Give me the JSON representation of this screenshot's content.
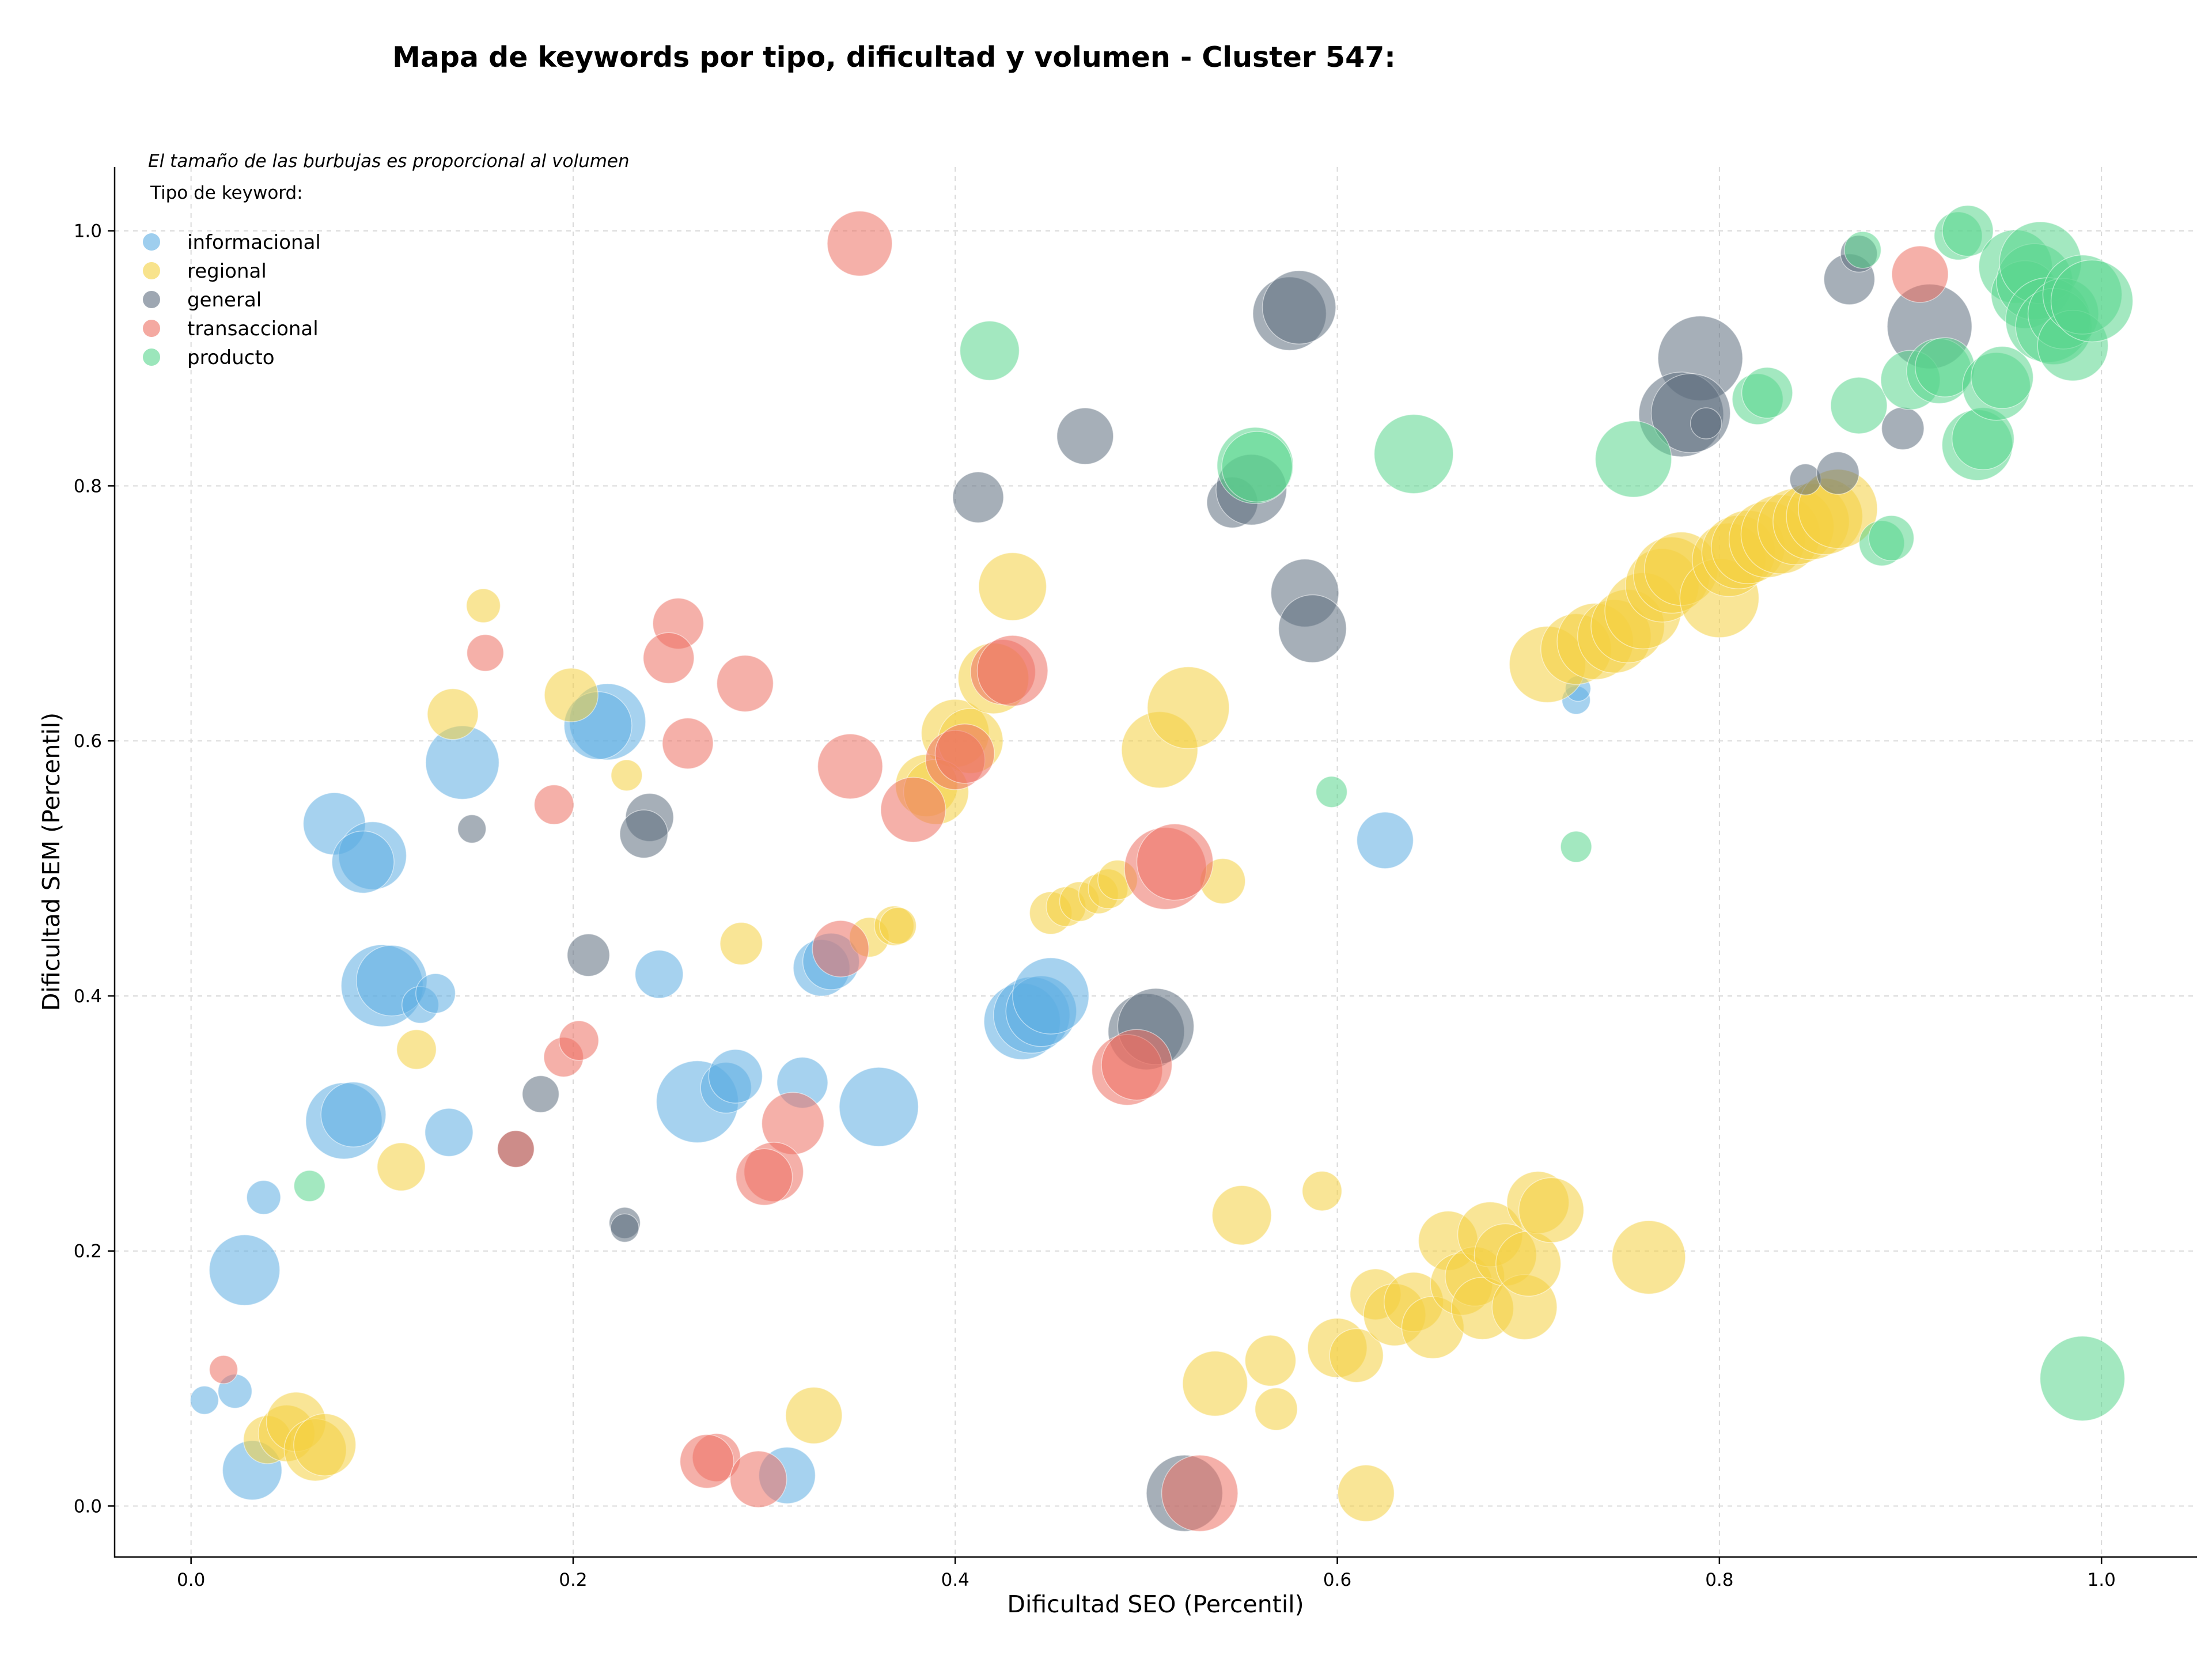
{
  "chart_data": {
    "type": "scatter",
    "title": "Mapa de keywords por tipo, dificultad y volumen - Cluster 547:",
    "xlabel": "Dificultad SEO (Percentil)",
    "ylabel": "Dificultad SEM (Percentil)",
    "xlim": [
      -0.04,
      1.05
    ],
    "ylim": [
      -0.04,
      1.05
    ],
    "x_ticks": [
      "0.0",
      "0.2",
      "0.4",
      "0.6",
      "0.8",
      "1.0"
    ],
    "y_ticks": [
      "0.0",
      "0.2",
      "0.4",
      "0.6",
      "0.8",
      "1.0"
    ],
    "grid": true,
    "note": "El tamaño de las burbujas es proporcional al volumen",
    "legend_title": "Tipo de keyword:",
    "legend_position": "top-left",
    "series": [
      {
        "name": "informacional",
        "color": "#5DADE2",
        "points": [
          [
            0.075,
            0.535,
            22
          ],
          [
            0.095,
            0.51,
            24
          ],
          [
            0.09,
            0.505,
            22
          ],
          [
            0.142,
            0.583,
            26
          ],
          [
            0.218,
            0.615,
            27
          ],
          [
            0.213,
            0.612,
            24
          ],
          [
            0.1,
            0.408,
            29
          ],
          [
            0.105,
            0.412,
            25
          ],
          [
            0.12,
            0.393,
            13
          ],
          [
            0.128,
            0.402,
            14
          ],
          [
            0.245,
            0.417,
            17
          ],
          [
            0.135,
            0.293,
            17
          ],
          [
            0.08,
            0.302,
            27
          ],
          [
            0.085,
            0.307,
            23
          ],
          [
            0.265,
            0.317,
            29
          ],
          [
            0.28,
            0.328,
            18
          ],
          [
            0.285,
            0.337,
            19
          ],
          [
            0.32,
            0.332,
            18
          ],
          [
            0.36,
            0.313,
            28
          ],
          [
            0.33,
            0.422,
            20
          ],
          [
            0.335,
            0.427,
            20
          ],
          [
            0.038,
            0.242,
            12
          ],
          [
            0.028,
            0.185,
            25
          ],
          [
            0.032,
            0.028,
            21
          ],
          [
            0.023,
            0.09,
            12
          ],
          [
            0.007,
            0.083,
            10
          ],
          [
            0.312,
            0.024,
            20
          ],
          [
            0.435,
            0.38,
            27
          ],
          [
            0.44,
            0.385,
            27
          ],
          [
            0.445,
            0.388,
            25
          ],
          [
            0.45,
            0.4,
            27
          ],
          [
            0.625,
            0.522,
            20
          ],
          [
            0.725,
            0.632,
            10
          ],
          [
            0.726,
            0.641,
            9
          ]
        ]
      },
      {
        "name": "regional",
        "color": "#F4D03F",
        "points": [
          [
            0.153,
            0.706,
            12
          ],
          [
            0.137,
            0.621,
            18
          ],
          [
            0.199,
            0.636,
            19
          ],
          [
            0.228,
            0.573,
            11
          ],
          [
            0.118,
            0.358,
            14
          ],
          [
            0.11,
            0.266,
            17
          ],
          [
            0.288,
            0.441,
            15
          ],
          [
            0.355,
            0.446,
            14
          ],
          [
            0.368,
            0.455,
            14
          ],
          [
            0.37,
            0.455,
            13
          ],
          [
            0.04,
            0.052,
            17
          ],
          [
            0.05,
            0.057,
            20
          ],
          [
            0.055,
            0.066,
            21
          ],
          [
            0.065,
            0.044,
            22
          ],
          [
            0.07,
            0.048,
            22
          ],
          [
            0.326,
            0.071,
            20
          ],
          [
            0.43,
            0.721,
            24
          ],
          [
            0.4,
            0.606,
            24
          ],
          [
            0.408,
            0.6,
            23
          ],
          [
            0.385,
            0.565,
            22
          ],
          [
            0.39,
            0.56,
            23
          ],
          [
            0.42,
            0.649,
            25
          ],
          [
            0.507,
            0.593,
            27
          ],
          [
            0.522,
            0.626,
            29
          ],
          [
            0.45,
            0.465,
            15
          ],
          [
            0.458,
            0.47,
            14
          ],
          [
            0.465,
            0.474,
            14
          ],
          [
            0.475,
            0.48,
            14
          ],
          [
            0.48,
            0.484,
            14
          ],
          [
            0.485,
            0.491,
            14
          ],
          [
            0.54,
            0.49,
            16
          ],
          [
            0.55,
            0.228,
            21
          ],
          [
            0.592,
            0.247,
            14
          ],
          [
            0.536,
            0.096,
            23
          ],
          [
            0.565,
            0.114,
            18
          ],
          [
            0.568,
            0.076,
            15
          ],
          [
            0.615,
            0.01,
            20
          ],
          [
            0.6,
            0.124,
            21
          ],
          [
            0.61,
            0.118,
            19
          ],
          [
            0.62,
            0.166,
            18
          ],
          [
            0.63,
            0.15,
            22
          ],
          [
            0.64,
            0.16,
            21
          ],
          [
            0.65,
            0.14,
            22
          ],
          [
            0.658,
            0.208,
            21
          ],
          [
            0.665,
            0.174,
            22
          ],
          [
            0.672,
            0.18,
            21
          ],
          [
            0.676,
            0.155,
            22
          ],
          [
            0.68,
            0.213,
            23
          ],
          [
            0.688,
            0.197,
            22
          ],
          [
            0.698,
            0.156,
            23
          ],
          [
            0.7,
            0.19,
            23
          ],
          [
            0.705,
            0.238,
            22
          ],
          [
            0.712,
            0.232,
            23
          ],
          [
            0.763,
            0.195,
            26
          ],
          [
            0.71,
            0.66,
            27
          ],
          [
            0.725,
            0.672,
            25
          ],
          [
            0.735,
            0.678,
            27
          ],
          [
            0.745,
            0.682,
            26
          ],
          [
            0.752,
            0.69,
            26
          ],
          [
            0.76,
            0.702,
            27
          ],
          [
            0.77,
            0.722,
            26
          ],
          [
            0.775,
            0.73,
            27
          ],
          [
            0.78,
            0.735,
            26
          ],
          [
            0.8,
            0.712,
            28
          ],
          [
            0.805,
            0.742,
            26
          ],
          [
            0.81,
            0.748,
            26
          ],
          [
            0.815,
            0.752,
            26
          ],
          [
            0.825,
            0.758,
            27
          ],
          [
            0.832,
            0.762,
            28
          ],
          [
            0.84,
            0.768,
            27
          ],
          [
            0.848,
            0.772,
            27
          ],
          [
            0.855,
            0.776,
            27
          ],
          [
            0.862,
            0.782,
            28
          ]
        ]
      },
      {
        "name": "general",
        "color": "#5D6D7E",
        "points": [
          [
            0.147,
            0.531,
            10
          ],
          [
            0.24,
            0.54,
            17
          ],
          [
            0.237,
            0.527,
            17
          ],
          [
            0.208,
            0.432,
            15
          ],
          [
            0.183,
            0.323,
            13
          ],
          [
            0.227,
            0.222,
            11
          ],
          [
            0.227,
            0.218,
            10
          ],
          [
            0.17,
            0.28,
            13
          ],
          [
            0.412,
            0.791,
            18
          ],
          [
            0.468,
            0.839,
            20
          ],
          [
            0.545,
            0.787,
            18
          ],
          [
            0.555,
            0.797,
            25
          ],
          [
            0.575,
            0.935,
            26
          ],
          [
            0.58,
            0.94,
            26
          ],
          [
            0.583,
            0.716,
            24
          ],
          [
            0.587,
            0.688,
            24
          ],
          [
            0.5,
            0.372,
            27
          ],
          [
            0.505,
            0.376,
            27
          ],
          [
            0.52,
            0.01,
            27
          ],
          [
            0.79,
            0.9,
            30
          ],
          [
            0.78,
            0.856,
            30
          ],
          [
            0.785,
            0.857,
            28
          ],
          [
            0.793,
            0.849,
            11
          ],
          [
            0.845,
            0.805,
            11
          ],
          [
            0.862,
            0.81,
            15
          ],
          [
            0.868,
            0.962,
            18
          ],
          [
            0.873,
            0.982,
            13
          ],
          [
            0.896,
            0.845,
            15
          ],
          [
            0.91,
            0.925,
            30
          ]
        ]
      },
      {
        "name": "transaccional",
        "color": "#EC7063",
        "points": [
          [
            0.35,
            0.99,
            23
          ],
          [
            0.154,
            0.669,
            13
          ],
          [
            0.255,
            0.692,
            18
          ],
          [
            0.25,
            0.665,
            18
          ],
          [
            0.29,
            0.645,
            20
          ],
          [
            0.26,
            0.598,
            18
          ],
          [
            0.345,
            0.58,
            23
          ],
          [
            0.19,
            0.55,
            14
          ],
          [
            0.195,
            0.352,
            14
          ],
          [
            0.203,
            0.365,
            14
          ],
          [
            0.17,
            0.28,
            13
          ],
          [
            0.315,
            0.3,
            22
          ],
          [
            0.305,
            0.262,
            21
          ],
          [
            0.3,
            0.258,
            20
          ],
          [
            0.34,
            0.437,
            20
          ],
          [
            0.275,
            0.038,
            17
          ],
          [
            0.27,
            0.035,
            19
          ],
          [
            0.297,
            0.021,
            20
          ],
          [
            0.017,
            0.107,
            10
          ],
          [
            0.378,
            0.546,
            23
          ],
          [
            0.4,
            0.585,
            21
          ],
          [
            0.405,
            0.59,
            21
          ],
          [
            0.425,
            0.654,
            23
          ],
          [
            0.43,
            0.655,
            25
          ],
          [
            0.49,
            0.342,
            25
          ],
          [
            0.495,
            0.346,
            25
          ],
          [
            0.51,
            0.5,
            29
          ],
          [
            0.515,
            0.505,
            27
          ],
          [
            0.528,
            0.01,
            27
          ],
          [
            0.905,
            0.966,
            20
          ]
        ]
      },
      {
        "name": "producto",
        "color": "#58D68D",
        "points": [
          [
            0.062,
            0.251,
            11
          ],
          [
            0.418,
            0.906,
            21
          ],
          [
            0.557,
            0.816,
            27
          ],
          [
            0.558,
            0.815,
            25
          ],
          [
            0.64,
            0.825,
            28
          ],
          [
            0.597,
            0.56,
            11
          ],
          [
            0.725,
            0.517,
            11
          ],
          [
            0.755,
            0.821,
            27
          ],
          [
            0.82,
            0.868,
            18
          ],
          [
            0.825,
            0.873,
            18
          ],
          [
            0.873,
            0.863,
            20
          ],
          [
            0.885,
            0.755,
            16
          ],
          [
            0.89,
            0.759,
            16
          ],
          [
            0.9,
            0.883,
            21
          ],
          [
            0.915,
            0.89,
            23
          ],
          [
            0.918,
            0.893,
            21
          ],
          [
            0.925,
            0.996,
            17
          ],
          [
            0.93,
            1.0,
            18
          ],
          [
            0.935,
            0.832,
            25
          ],
          [
            0.938,
            0.837,
            22
          ],
          [
            0.945,
            0.878,
            24
          ],
          [
            0.948,
            0.885,
            22
          ],
          [
            0.955,
            0.972,
            26
          ],
          [
            0.96,
            0.95,
            24
          ],
          [
            0.965,
            0.96,
            27
          ],
          [
            0.968,
            0.975,
            29
          ],
          [
            0.972,
            0.93,
            30
          ],
          [
            0.975,
            0.925,
            27
          ],
          [
            0.98,
            0.935,
            25
          ],
          [
            0.985,
            0.91,
            25
          ],
          [
            0.99,
            0.95,
            28
          ],
          [
            0.995,
            0.945,
            29
          ],
          [
            0.99,
            0.1,
            30
          ],
          [
            0.875,
            0.985,
            13
          ]
        ]
      }
    ]
  }
}
